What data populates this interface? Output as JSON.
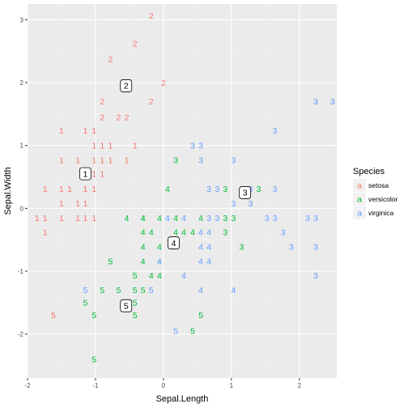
{
  "chart_data": {
    "type": "scatter",
    "xlabel": "Sepal.Length",
    "ylabel": "Sepal.Width",
    "xlim": [
      -2.0,
      2.55
    ],
    "ylim": [
      -2.7,
      3.25
    ],
    "x_ticks": [
      -2,
      -1,
      0,
      1,
      2
    ],
    "y_ticks": [
      -2,
      -1,
      0,
      1,
      2,
      3
    ],
    "grid": true,
    "legend": {
      "title": "Species",
      "placement": "right",
      "key_glyph": "a",
      "entries": [
        {
          "name": "setosa",
          "color": "#F8766D"
        },
        {
          "name": "versicolor",
          "color": "#00BA38"
        },
        {
          "name": "virginica",
          "color": "#619CFF"
        }
      ]
    },
    "centroids": [
      {
        "label": "1",
        "x": -1.15,
        "y": 0.55
      },
      {
        "label": "2",
        "x": -0.55,
        "y": 1.95
      },
      {
        "label": "3",
        "x": 1.2,
        "y": 0.25
      },
      {
        "label": "4",
        "x": 0.15,
        "y": -0.55
      },
      {
        "label": "5",
        "x": -0.55,
        "y": -1.55
      }
    ],
    "series": [
      {
        "name": "setosa",
        "color": "#F8766D",
        "points": [
          {
            "x": -0.18,
            "y": 3.07,
            "label": "2"
          },
          {
            "x": -0.42,
            "y": 2.62,
            "label": "2"
          },
          {
            "x": -0.78,
            "y": 2.37,
            "label": "2"
          },
          {
            "x": 0.0,
            "y": 2.0,
            "label": "2"
          },
          {
            "x": -0.9,
            "y": 1.7,
            "label": "2"
          },
          {
            "x": -0.18,
            "y": 1.7,
            "label": "2"
          },
          {
            "x": -0.9,
            "y": 1.45,
            "label": "2"
          },
          {
            "x": -0.66,
            "y": 1.45,
            "label": "2"
          },
          {
            "x": -0.54,
            "y": 1.45,
            "label": "2"
          },
          {
            "x": -1.5,
            "y": 1.24,
            "label": "1"
          },
          {
            "x": -1.15,
            "y": 1.24,
            "label": "1"
          },
          {
            "x": -1.02,
            "y": 1.24,
            "label": "1"
          },
          {
            "x": -1.02,
            "y": 1.0,
            "label": "1"
          },
          {
            "x": -0.9,
            "y": 1.0,
            "label": "1"
          },
          {
            "x": -0.78,
            "y": 1.0,
            "label": "1"
          },
          {
            "x": -0.42,
            "y": 1.0,
            "label": "1"
          },
          {
            "x": -1.5,
            "y": 0.77,
            "label": "1"
          },
          {
            "x": -1.26,
            "y": 0.77,
            "label": "1"
          },
          {
            "x": -1.02,
            "y": 0.77,
            "label": "1"
          },
          {
            "x": -0.9,
            "y": 0.77,
            "label": "1"
          },
          {
            "x": -0.78,
            "y": 0.77,
            "label": "1"
          },
          {
            "x": -0.54,
            "y": 0.77,
            "label": "1"
          },
          {
            "x": -1.02,
            "y": 0.55,
            "label": "1"
          },
          {
            "x": -0.9,
            "y": 0.55,
            "label": "1"
          },
          {
            "x": -1.74,
            "y": 0.31,
            "label": "1"
          },
          {
            "x": -1.5,
            "y": 0.31,
            "label": "1"
          },
          {
            "x": -1.38,
            "y": 0.31,
            "label": "1"
          },
          {
            "x": -1.15,
            "y": 0.31,
            "label": "1"
          },
          {
            "x": -1.02,
            "y": 0.31,
            "label": "1"
          },
          {
            "x": -1.5,
            "y": 0.08,
            "label": "1"
          },
          {
            "x": -1.26,
            "y": 0.08,
            "label": "1"
          },
          {
            "x": -1.15,
            "y": 0.08,
            "label": "1"
          },
          {
            "x": -1.86,
            "y": -0.15,
            "label": "1"
          },
          {
            "x": -1.74,
            "y": -0.15,
            "label": "1"
          },
          {
            "x": -1.5,
            "y": -0.15,
            "label": "1"
          },
          {
            "x": -1.26,
            "y": -0.15,
            "label": "1"
          },
          {
            "x": -1.15,
            "y": -0.15,
            "label": "1"
          },
          {
            "x": -1.02,
            "y": -0.15,
            "label": "1"
          },
          {
            "x": -1.74,
            "y": -0.38,
            "label": "1"
          },
          {
            "x": -1.62,
            "y": -1.7,
            "label": "5"
          }
        ]
      },
      {
        "name": "versicolor",
        "color": "#00BA38",
        "points": [
          {
            "x": 0.18,
            "y": 0.77,
            "label": "3"
          },
          {
            "x": 0.06,
            "y": 0.31,
            "label": "4"
          },
          {
            "x": 0.91,
            "y": 0.31,
            "label": "3"
          },
          {
            "x": 1.4,
            "y": 0.31,
            "label": "3"
          },
          {
            "x": -0.54,
            "y": -0.15,
            "label": "4"
          },
          {
            "x": -0.3,
            "y": -0.15,
            "label": "4"
          },
          {
            "x": -0.3,
            "y": -0.15,
            "label": "4"
          },
          {
            "x": -0.06,
            "y": -0.15,
            "label": "4"
          },
          {
            "x": 0.18,
            "y": -0.15,
            "label": "4"
          },
          {
            "x": 0.55,
            "y": -0.15,
            "label": "4"
          },
          {
            "x": 0.91,
            "y": -0.15,
            "label": "3"
          },
          {
            "x": 1.03,
            "y": -0.15,
            "label": "3"
          },
          {
            "x": -0.3,
            "y": -0.38,
            "label": "4"
          },
          {
            "x": -0.18,
            "y": -0.38,
            "label": "4"
          },
          {
            "x": 0.18,
            "y": -0.38,
            "label": "4"
          },
          {
            "x": 0.3,
            "y": -0.38,
            "label": "4"
          },
          {
            "x": 0.43,
            "y": -0.38,
            "label": "4"
          },
          {
            "x": 0.91,
            "y": -0.38,
            "label": "3"
          },
          {
            "x": -0.3,
            "y": -0.61,
            "label": "4"
          },
          {
            "x": -0.06,
            "y": -0.61,
            "label": "4"
          },
          {
            "x": 1.15,
            "y": -0.61,
            "label": "3"
          },
          {
            "x": -0.78,
            "y": -0.84,
            "label": "5"
          },
          {
            "x": -0.3,
            "y": -0.84,
            "label": "4"
          },
          {
            "x": -0.06,
            "y": -0.84,
            "label": "4"
          },
          {
            "x": -0.42,
            "y": -1.07,
            "label": "5"
          },
          {
            "x": -0.18,
            "y": -1.07,
            "label": "4"
          },
          {
            "x": -0.06,
            "y": -1.07,
            "label": "4"
          },
          {
            "x": -0.9,
            "y": -1.3,
            "label": "5"
          },
          {
            "x": -0.66,
            "y": -1.3,
            "label": "5"
          },
          {
            "x": -0.42,
            "y": -1.3,
            "label": "5"
          },
          {
            "x": -0.3,
            "y": -1.3,
            "label": "5"
          },
          {
            "x": -1.15,
            "y": -1.5,
            "label": "5"
          },
          {
            "x": -0.42,
            "y": -1.5,
            "label": "5"
          },
          {
            "x": -1.02,
            "y": -1.7,
            "label": "5"
          },
          {
            "x": -0.42,
            "y": -1.7,
            "label": "5"
          },
          {
            "x": 0.55,
            "y": -1.7,
            "label": "5"
          },
          {
            "x": 0.43,
            "y": -1.95,
            "label": "5"
          },
          {
            "x": -1.02,
            "y": -2.4,
            "label": "5"
          }
        ]
      },
      {
        "name": "virginica",
        "color": "#619CFF",
        "points": [
          {
            "x": 2.24,
            "y": 1.7,
            "label": "3"
          },
          {
            "x": 2.49,
            "y": 1.7,
            "label": "3"
          },
          {
            "x": 1.64,
            "y": 1.24,
            "label": "3"
          },
          {
            "x": 0.43,
            "y": 1.0,
            "label": "3"
          },
          {
            "x": 0.55,
            "y": 1.0,
            "label": "3"
          },
          {
            "x": 0.55,
            "y": 0.77,
            "label": "3"
          },
          {
            "x": 1.03,
            "y": 0.77,
            "label": "3"
          },
          {
            "x": 0.67,
            "y": 0.31,
            "label": "3"
          },
          {
            "x": 0.79,
            "y": 0.31,
            "label": "3"
          },
          {
            "x": 1.28,
            "y": 0.31,
            "label": "3"
          },
          {
            "x": 1.64,
            "y": 0.31,
            "label": "3"
          },
          {
            "x": 1.03,
            "y": 0.08,
            "label": "3"
          },
          {
            "x": 1.28,
            "y": 0.08,
            "label": "3"
          },
          {
            "x": 0.06,
            "y": -0.15,
            "label": "4"
          },
          {
            "x": 0.3,
            "y": -0.15,
            "label": "4"
          },
          {
            "x": 0.67,
            "y": -0.15,
            "label": "3"
          },
          {
            "x": 0.79,
            "y": -0.15,
            "label": "3"
          },
          {
            "x": 1.52,
            "y": -0.15,
            "label": "3"
          },
          {
            "x": 1.64,
            "y": -0.15,
            "label": "3"
          },
          {
            "x": 2.12,
            "y": -0.15,
            "label": "3"
          },
          {
            "x": 2.24,
            "y": -0.15,
            "label": "3"
          },
          {
            "x": 0.55,
            "y": -0.38,
            "label": "4"
          },
          {
            "x": 0.67,
            "y": -0.38,
            "label": "4"
          },
          {
            "x": 1.76,
            "y": -0.38,
            "label": "3"
          },
          {
            "x": 0.55,
            "y": -0.61,
            "label": "4"
          },
          {
            "x": 0.67,
            "y": -0.61,
            "label": "4"
          },
          {
            "x": 1.88,
            "y": -0.61,
            "label": "3"
          },
          {
            "x": 2.24,
            "y": -0.61,
            "label": "3"
          },
          {
            "x": -0.06,
            "y": -0.84,
            "label": "4"
          },
          {
            "x": 0.55,
            "y": -0.84,
            "label": "4"
          },
          {
            "x": 0.67,
            "y": -0.84,
            "label": "4"
          },
          {
            "x": 0.3,
            "y": -1.07,
            "label": "4"
          },
          {
            "x": 2.24,
            "y": -1.07,
            "label": "3"
          },
          {
            "x": -1.15,
            "y": -1.3,
            "label": "5"
          },
          {
            "x": -0.18,
            "y": -1.3,
            "label": "5"
          },
          {
            "x": 0.55,
            "y": -1.3,
            "label": "4"
          },
          {
            "x": 1.03,
            "y": -1.3,
            "label": "4"
          },
          {
            "x": 0.18,
            "y": -1.95,
            "label": "5"
          }
        ]
      }
    ]
  }
}
